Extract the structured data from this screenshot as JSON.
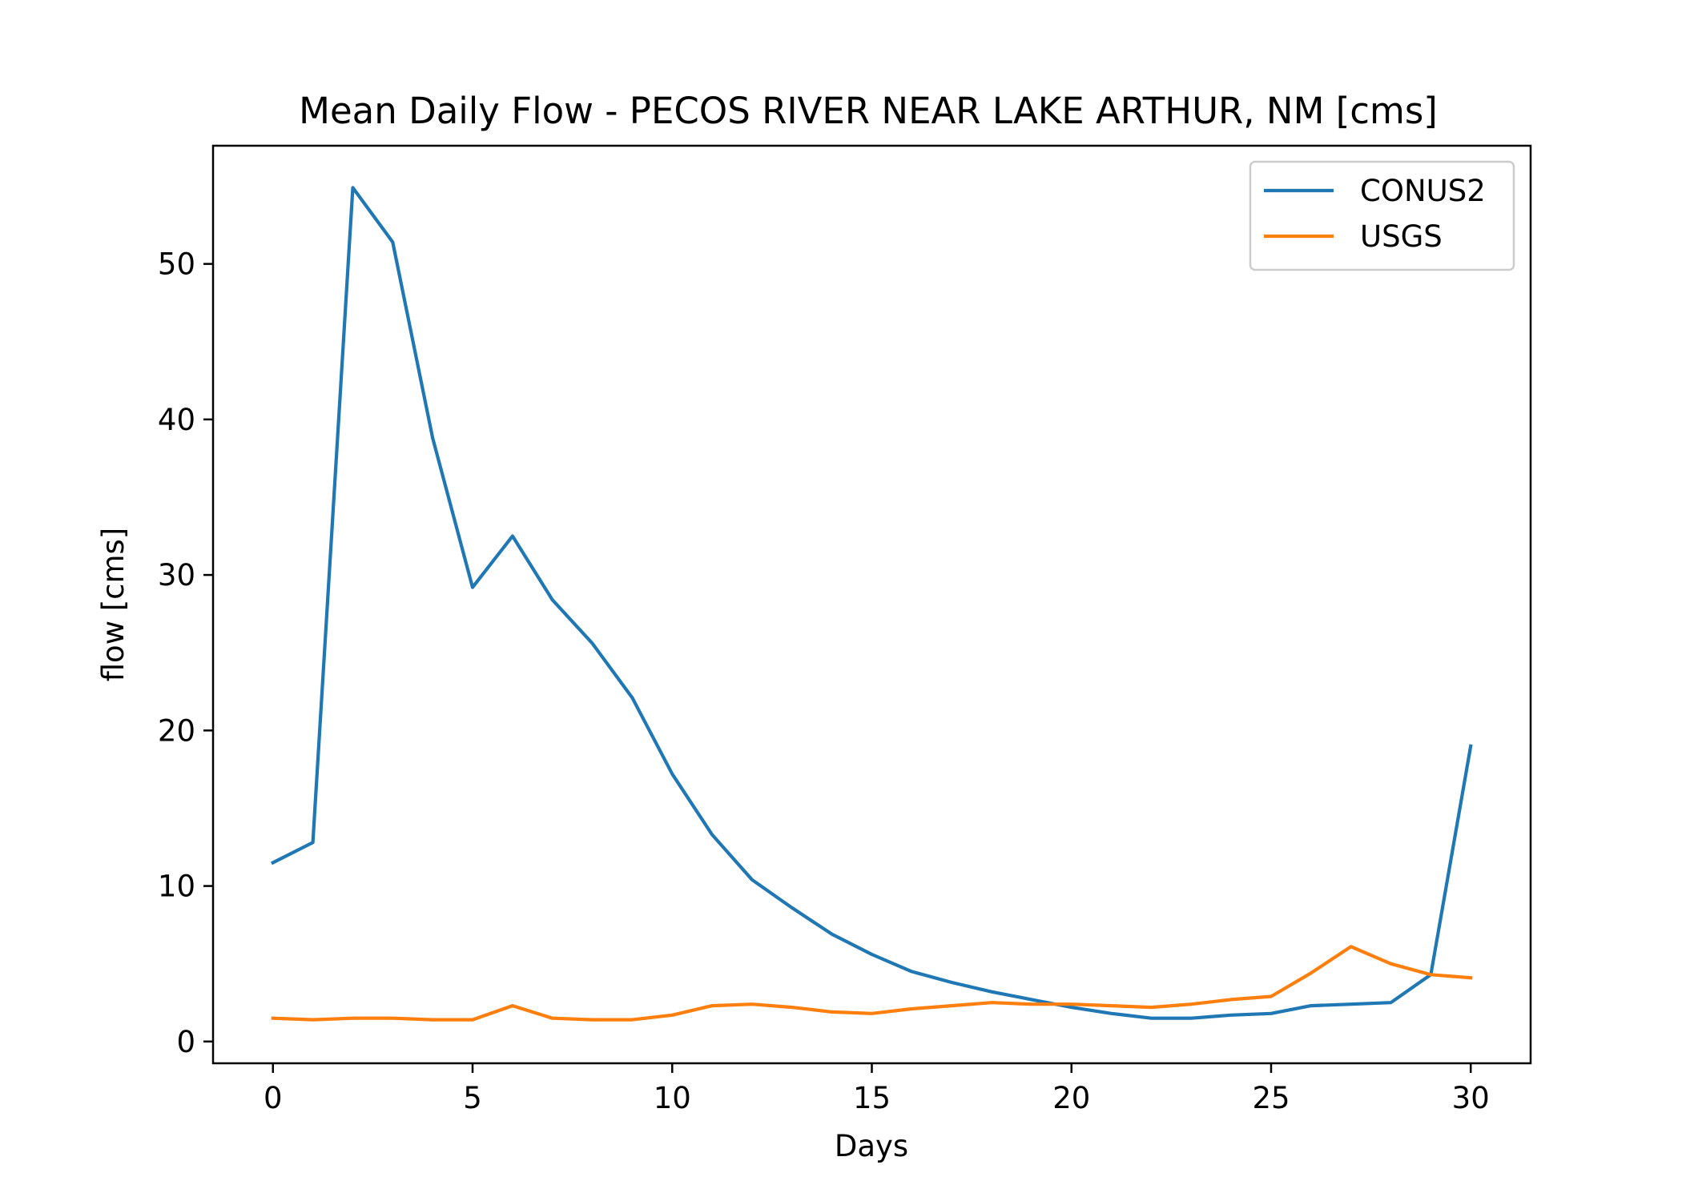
{
  "chart_data": {
    "type": "line",
    "title": "Mean Daily Flow - PECOS RIVER NEAR LAKE ARTHUR, NM [cms]",
    "xlabel": "Days",
    "ylabel": "flow [cms]",
    "xlim": [
      -1.5,
      31.5
    ],
    "ylim": [
      -1.4,
      57.6
    ],
    "xticks": [
      0,
      5,
      10,
      15,
      20,
      25,
      30
    ],
    "yticks": [
      0,
      10,
      20,
      30,
      40,
      50
    ],
    "grid": false,
    "legend_position": "top-right",
    "x": [
      0,
      1,
      2,
      3,
      4,
      5,
      6,
      7,
      8,
      9,
      10,
      11,
      12,
      13,
      14,
      15,
      16,
      17,
      18,
      19,
      20,
      21,
      22,
      23,
      24,
      25,
      26,
      27,
      28,
      29,
      30
    ],
    "series": [
      {
        "name": "CONUS2",
        "color": "#1f77b4",
        "values": [
          11.5,
          12.8,
          54.9,
          51.4,
          38.8,
          29.2,
          32.5,
          28.4,
          25.6,
          22.1,
          17.2,
          13.3,
          10.4,
          8.6,
          6.9,
          5.6,
          4.5,
          3.8,
          3.2,
          2.7,
          2.2,
          1.8,
          1.5,
          1.5,
          1.7,
          1.8,
          2.3,
          2.4,
          2.5,
          4.3,
          19.0
        ]
      },
      {
        "name": "USGS",
        "color": "#ff7f0e",
        "values": [
          1.5,
          1.4,
          1.5,
          1.5,
          1.4,
          1.4,
          2.3,
          1.5,
          1.4,
          1.4,
          1.7,
          2.3,
          2.4,
          2.2,
          1.9,
          1.8,
          2.1,
          2.3,
          2.5,
          2.4,
          2.4,
          2.3,
          2.2,
          2.4,
          2.7,
          2.9,
          4.4,
          6.1,
          5.0,
          4.3,
          4.1
        ]
      }
    ]
  }
}
